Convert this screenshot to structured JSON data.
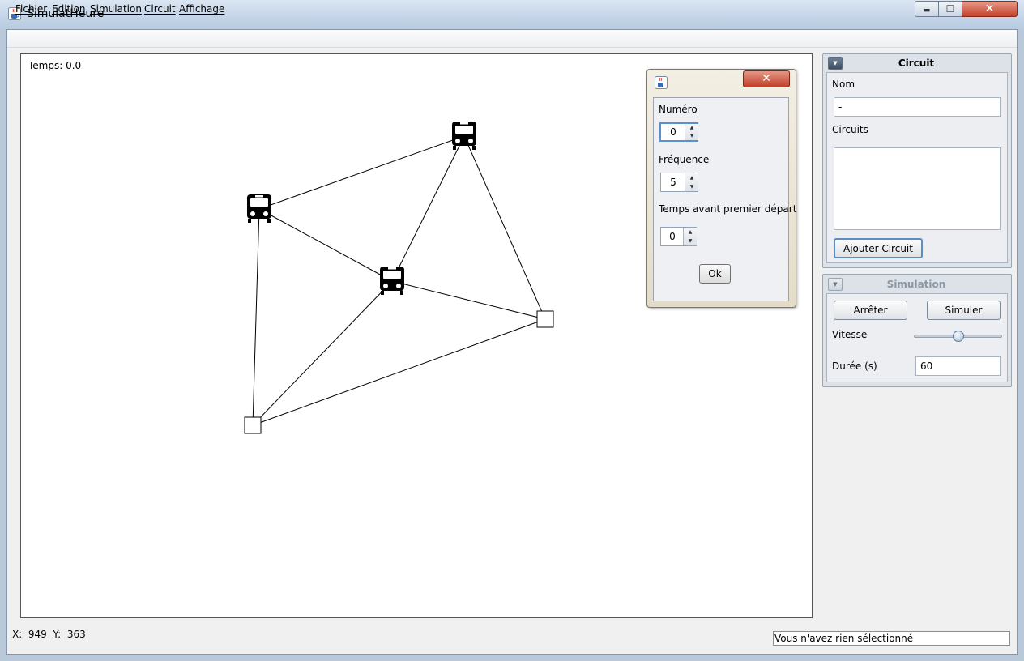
{
  "window": {
    "title": "SimulatHeure",
    "minimize_glyph": "▬",
    "maximize_glyph": "☐",
    "close_glyph": "✕"
  },
  "menu": [
    "Fichier",
    "Edition",
    "Simulation",
    "Circuit",
    "Affichage"
  ],
  "canvas": {
    "time_label": "Temps: 0.0"
  },
  "dialog": {
    "close_glyph": "✕",
    "numero_label": "Numéro",
    "numero_value": "0",
    "frequence_label": "Fréquence",
    "frequence_value": "5",
    "temps_label": "Temps avant premier départ",
    "temps_value": "0",
    "ok_label": "Ok"
  },
  "circuit_panel": {
    "title": "Circuit",
    "nom_label": "Nom",
    "nom_value": "-",
    "circuits_label": "Circuits",
    "add_button": "Ajouter Circuit"
  },
  "simulation_panel": {
    "title": "Simulation",
    "stop_button": "Arrêter",
    "simulate_button": "Simuler",
    "speed_label": "Vitesse",
    "speed_fraction": 0.5,
    "duration_label": "Durée (s)",
    "duration_value": "60"
  },
  "status": {
    "coords": "X:  949  Y:  363",
    "message": "Vous n'avez rien sélectionné"
  },
  "colors": {
    "titlebar": "#c9d8ea",
    "close_red": "#c4402a",
    "canvas_bg": "#ffffff"
  },
  "icons": {
    "app": "java-cup-icon",
    "bus": "bus-front-icon",
    "stop": "square-stop-icon"
  }
}
